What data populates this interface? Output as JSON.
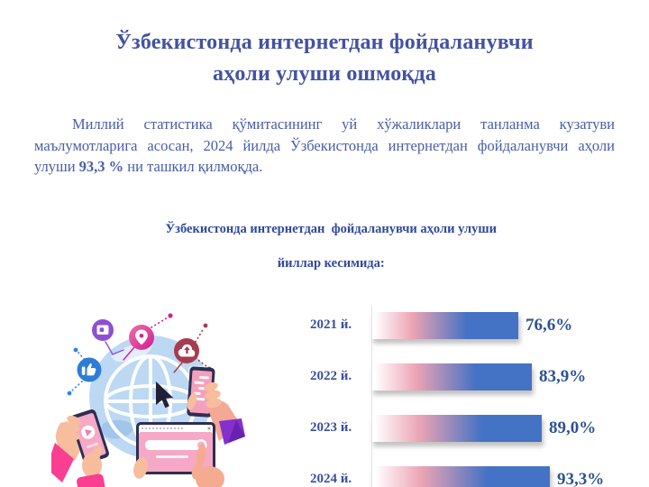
{
  "page": {
    "title": {
      "line1": "Ўзбекистонда интернетдан фойдаланувчи",
      "line2": "аҳоли улуши ошмоқда"
    },
    "intro": {
      "text_before": "Миллий статистика қўмитасининг уй хўжаликлари танланма кузатуви маълумотларига асосан, 2024 йилда Ўзбекистонда интернетдан фойдаланувчи аҳоли улуши ",
      "highlight": "93,3 %",
      "text_after": " ни ташкил қилмоқда."
    },
    "chart_heading": {
      "line1": "Ўзбекистонда интернетдан  фойдаланувчи аҳоли улуши",
      "line2": "йиллар кесимида:"
    }
  },
  "chart_data": {
    "type": "bar",
    "orientation": "horizontal",
    "categories": [
      "2021 й.",
      "2022 й.",
      "2023 й.",
      "2024 й."
    ],
    "values": [
      76.6,
      83.9,
      89.0,
      93.3
    ],
    "value_labels": [
      "76,6%",
      "83,9%",
      "89,0%",
      "93,3%"
    ],
    "title": "Ўзбекистонда интернетдан фойдаланувчи аҳоли улуши йиллар кесимида:",
    "xlabel": "",
    "ylabel": "",
    "xlim": [
      0,
      100
    ],
    "grid": false,
    "legend": false
  },
  "colors": {
    "background": "#ffffff",
    "heading": "#4352a3",
    "body_text": "#4a5ca8",
    "chart_heading": "#31489f",
    "year_label": "#3a4e9f",
    "value_label": "#2d5193",
    "bar_blue": "#4472c4",
    "bar_pink": "#eca4b4",
    "axis_line": "#e4e4e6"
  },
  "illustration": {
    "alt": "Hands holding smartphones and a tablet around an internet globe with social-media icons",
    "icons": [
      "globe-icon",
      "thumbs-up-icon",
      "media-screen-icon",
      "location-pin-icon",
      "cloud-upload-icon",
      "cursor-arrow-icon",
      "smartphone-icon",
      "tablet-icon"
    ]
  }
}
